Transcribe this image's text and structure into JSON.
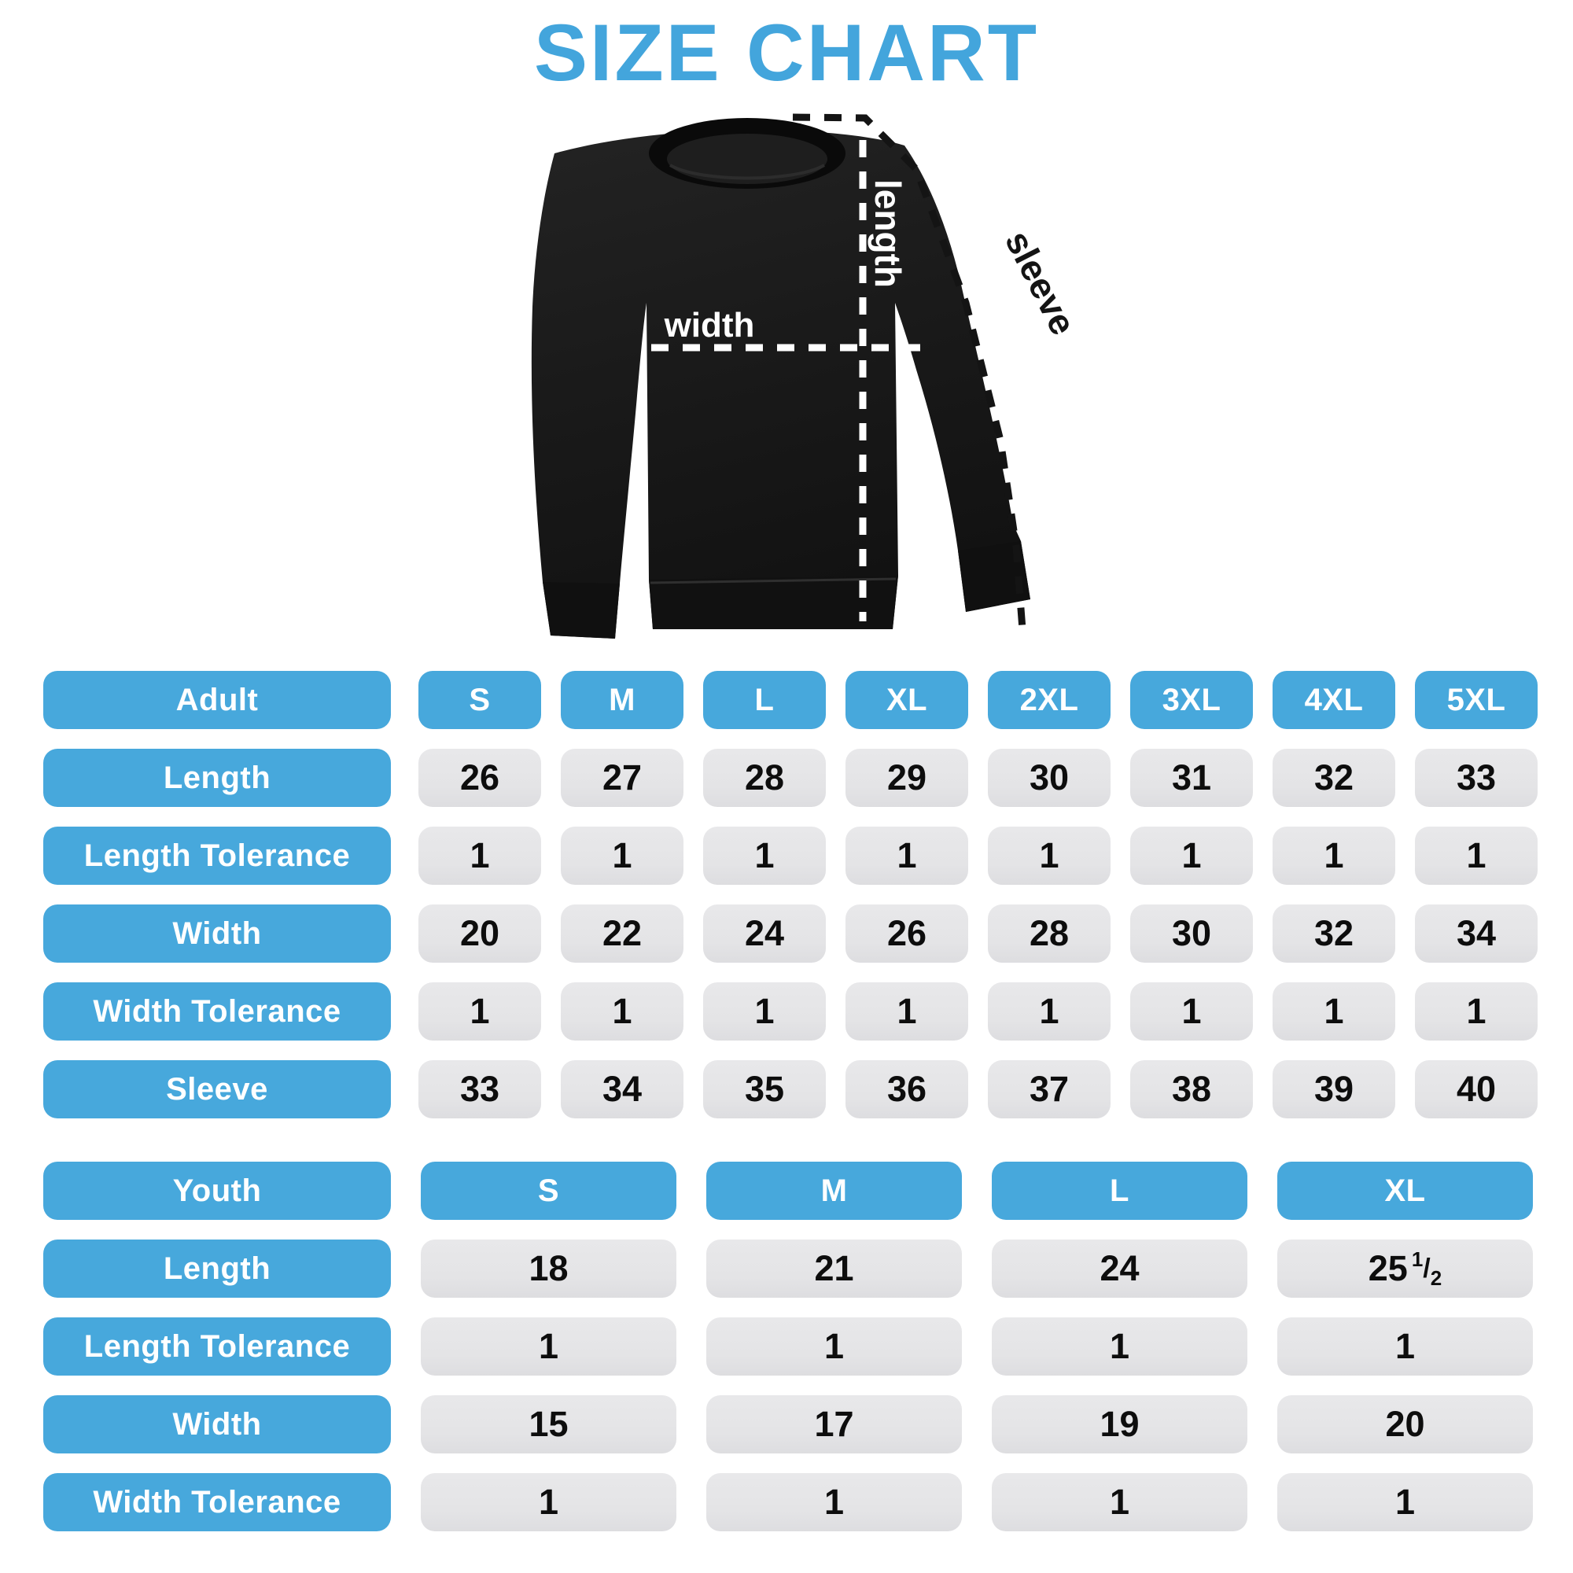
{
  "title": "SIZE CHART",
  "colors": {
    "accent_blue": "#47a8dc",
    "cell_gray": "#e4e4e6",
    "garment_black": "#1a1a1a"
  },
  "figure": {
    "labels": {
      "length": "length",
      "width": "width",
      "sleeve": "sleeve"
    }
  },
  "adult_table": {
    "header": {
      "label": "Adult",
      "sizes": [
        "S",
        "M",
        "L",
        "XL",
        "2XL",
        "3XL",
        "4XL",
        "5XL"
      ]
    },
    "rows": [
      {
        "label": "Length",
        "values": [
          "26",
          "27",
          "28",
          "29",
          "30",
          "31",
          "32",
          "33"
        ]
      },
      {
        "label": "Length Tolerance",
        "values": [
          "1",
          "1",
          "1",
          "1",
          "1",
          "1",
          "1",
          "1"
        ]
      },
      {
        "label": "Width",
        "values": [
          "20",
          "22",
          "24",
          "26",
          "28",
          "30",
          "32",
          "34"
        ]
      },
      {
        "label": "Width Tolerance",
        "values": [
          "1",
          "1",
          "1",
          "1",
          "1",
          "1",
          "1",
          "1"
        ]
      },
      {
        "label": "Sleeve",
        "values": [
          "33",
          "34",
          "35",
          "36",
          "37",
          "38",
          "39",
          "40"
        ]
      }
    ]
  },
  "youth_table": {
    "header": {
      "label": "Youth",
      "sizes": [
        "S",
        "M",
        "L",
        "XL"
      ]
    },
    "rows": [
      {
        "label": "Length",
        "values": [
          "18",
          "21",
          "24",
          "25 1/2"
        ]
      },
      {
        "label": "Length Tolerance",
        "values": [
          "1",
          "1",
          "1",
          "1"
        ]
      },
      {
        "label": "Width",
        "values": [
          "15",
          "17",
          "19",
          "20"
        ]
      },
      {
        "label": "Width Tolerance",
        "values": [
          "1",
          "1",
          "1",
          "1"
        ]
      }
    ]
  }
}
